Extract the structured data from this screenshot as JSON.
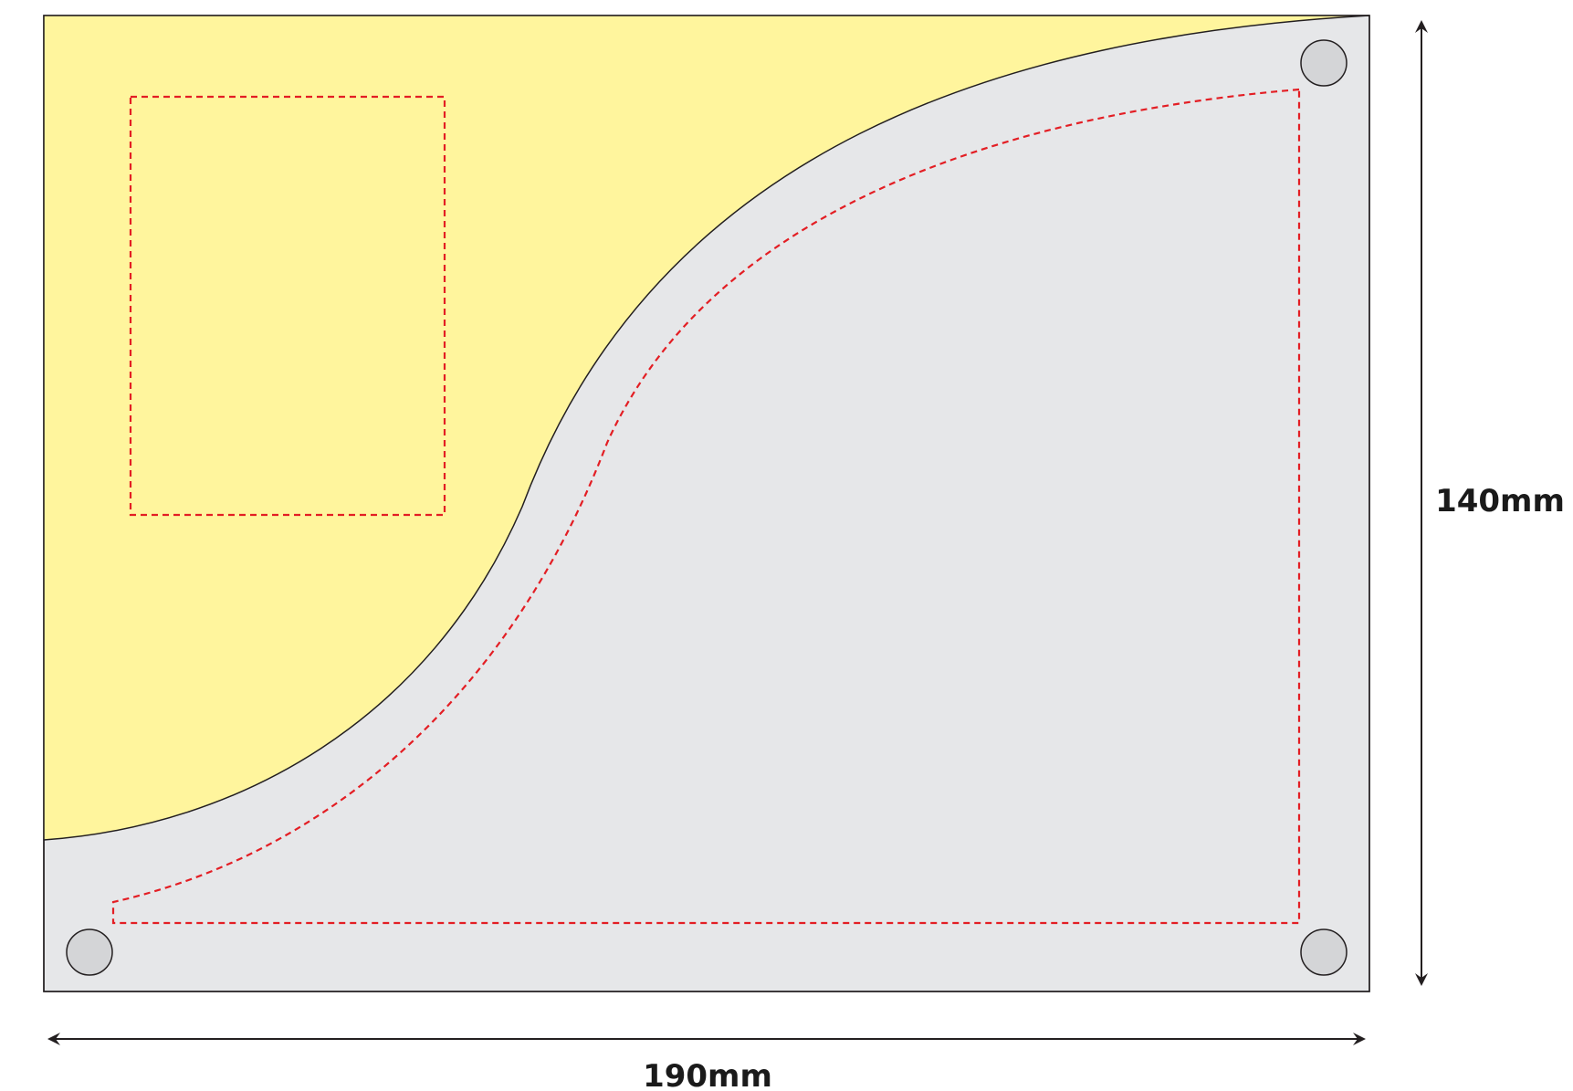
{
  "dimensions": {
    "width_label": "190mm",
    "height_label": "140mm"
  },
  "colors": {
    "panel_fill": "#e6e7e9",
    "curve_region_fill": "#fff59d",
    "outline": "#231f20",
    "dashed_guide": "#e31e24",
    "hole_fill": "#d4d5d7"
  }
}
